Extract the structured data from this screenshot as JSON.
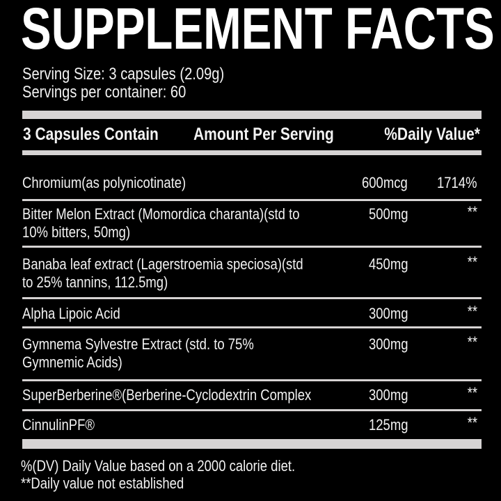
{
  "title": "SUPPLEMENT FACTS",
  "serving_size": "Serving Size: 3 capsules (2.09g)",
  "servings_per_container": "Servings per container: 60",
  "header": {
    "col1": "3 Capsules Contain",
    "col2": "Amount Per Serving",
    "col3": "%Daily Value*"
  },
  "rows": [
    {
      "name1": "Chromium(as polynicotinate)",
      "name2": "",
      "amount": "600mcg",
      "dv": "1714%"
    },
    {
      "name1": "Bitter Melon Extract (Momordica charanta)(std to",
      "name2": "10% bitters, 50mg)",
      "amount": "500mg",
      "dv": "**"
    },
    {
      "name1": "Banaba leaf extract (Lagerstroemia speciosa)(std",
      "name2": "to 25% tannins, 112.5mg)",
      "amount": "450mg",
      "dv": "**"
    },
    {
      "name1": "Alpha Lipoic Acid",
      "name2": "",
      "amount": "300mg",
      "dv": "**"
    },
    {
      "name1": "Gymnema Sylvestre Extract (std. to 75%",
      "name2": "Gymnemic Acids)",
      "amount": "300mg",
      "dv": "**"
    },
    {
      "name1": "SuperBerberine®(Berberine-Cyclodextrin Complex",
      "name2": "",
      "amount": "300mg",
      "dv": "**"
    },
    {
      "name1": "CinnulinPF®",
      "name2": "",
      "amount": "125mg",
      "dv": "**"
    }
  ],
  "footnotes": [
    "%(DV) Daily Value based on a 2000 calorie diet.",
    "**Daily value not established"
  ]
}
